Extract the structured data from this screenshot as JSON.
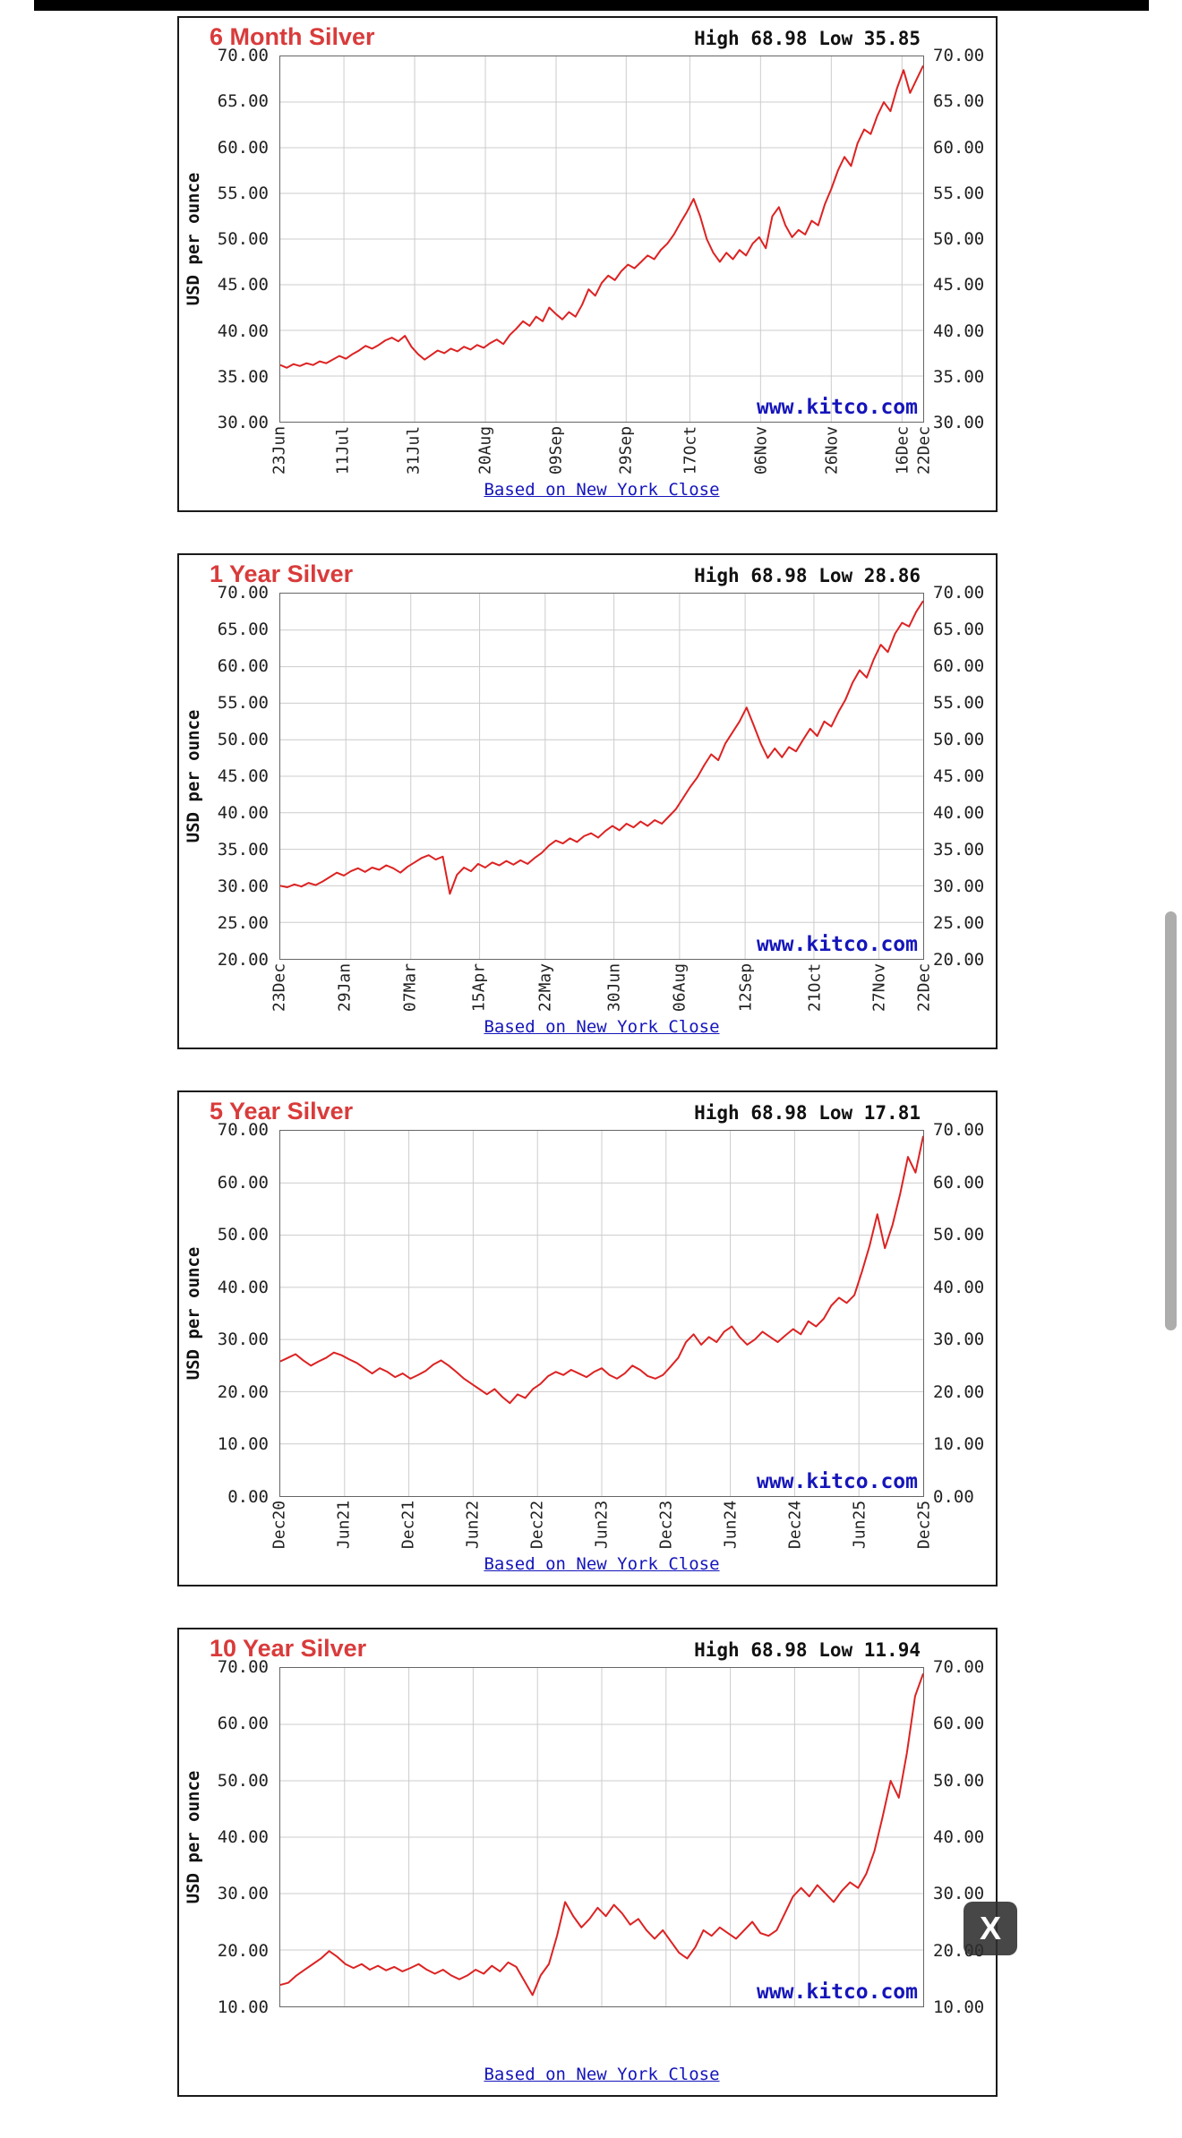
{
  "page": {
    "watermark": "www.kitco.com",
    "footer_link": "Based on New York Close",
    "close_button": "X"
  },
  "colors": {
    "title_red": "#d93b3b",
    "line_red": "#dd2222",
    "link_blue": "#1515bb",
    "grid_gray": "#cccccc"
  },
  "chart_data": [
    {
      "type": "line",
      "title": "6 Month Silver",
      "high_low": "High 68.98 Low 35.85",
      "high": 68.98,
      "low": 35.85,
      "ylabel": "USD per ounce",
      "ylim": [
        30,
        70
      ],
      "ystep": 5,
      "grid": true,
      "y_ticks": [
        "70.00",
        "65.00",
        "60.00",
        "55.00",
        "50.00",
        "45.00",
        "40.00",
        "35.00",
        "30.00"
      ],
      "x_ticks": [
        {
          "label": "23Jun",
          "pos": 0.0
        },
        {
          "label": "11Jul",
          "pos": 0.099
        },
        {
          "label": "31Jul",
          "pos": 0.209
        },
        {
          "label": "20Aug",
          "pos": 0.319
        },
        {
          "label": "09Sep",
          "pos": 0.429
        },
        {
          "label": "29Sep",
          "pos": 0.538
        },
        {
          "label": "17Oct",
          "pos": 0.637
        },
        {
          "label": "06Nov",
          "pos": 0.747
        },
        {
          "label": "26Nov",
          "pos": 0.857
        },
        {
          "label": "16Dec",
          "pos": 0.967
        },
        {
          "label": "22Dec",
          "pos": 1.0
        }
      ],
      "values": [
        36.2,
        35.9,
        36.3,
        36.1,
        36.4,
        36.2,
        36.6,
        36.4,
        36.8,
        37.2,
        36.9,
        37.4,
        37.8,
        38.3,
        38.0,
        38.4,
        38.9,
        39.2,
        38.8,
        39.4,
        38.2,
        37.4,
        36.8,
        37.3,
        37.8,
        37.5,
        38.0,
        37.7,
        38.2,
        37.9,
        38.4,
        38.1,
        38.6,
        39.0,
        38.5,
        39.5,
        40.2,
        41.0,
        40.5,
        41.5,
        41.0,
        42.5,
        41.8,
        41.2,
        42.0,
        41.5,
        42.8,
        44.5,
        43.8,
        45.2,
        46.0,
        45.5,
        46.5,
        47.2,
        46.8,
        47.5,
        48.2,
        47.8,
        48.8,
        49.5,
        50.5,
        51.8,
        53.0,
        54.4,
        52.5,
        50.0,
        48.5,
        47.5,
        48.5,
        47.8,
        48.8,
        48.2,
        49.5,
        50.2,
        49.0,
        52.5,
        53.5,
        51.5,
        50.2,
        51.0,
        50.5,
        52.0,
        51.5,
        53.8,
        55.5,
        57.5,
        59.0,
        58.0,
        60.5,
        62.0,
        61.5,
        63.5,
        65.0,
        64.0,
        66.5,
        68.5,
        66.0,
        67.5,
        69.0
      ]
    },
    {
      "type": "line",
      "title": "1 Year Silver",
      "high_low": "High 68.98 Low 28.86",
      "high": 68.98,
      "low": 28.86,
      "ylabel": "USD per ounce",
      "ylim": [
        20,
        70
      ],
      "ystep": 5,
      "grid": true,
      "y_ticks": [
        "70.00",
        "65.00",
        "60.00",
        "55.00",
        "50.00",
        "45.00",
        "40.00",
        "35.00",
        "30.00",
        "25.00",
        "20.00"
      ],
      "x_ticks": [
        {
          "label": "23Dec",
          "pos": 0.0
        },
        {
          "label": "29Jan",
          "pos": 0.102
        },
        {
          "label": "07Mar",
          "pos": 0.203
        },
        {
          "label": "15Apr",
          "pos": 0.31
        },
        {
          "label": "22May",
          "pos": 0.412
        },
        {
          "label": "30Jun",
          "pos": 0.519
        },
        {
          "label": "06Aug",
          "pos": 0.621
        },
        {
          "label": "12Sep",
          "pos": 0.723
        },
        {
          "label": "21Oct",
          "pos": 0.83
        },
        {
          "label": "27Nov",
          "pos": 0.931
        },
        {
          "label": "22Dec",
          "pos": 1.0
        }
      ],
      "values": [
        30.0,
        29.8,
        30.2,
        29.9,
        30.4,
        30.1,
        30.6,
        31.2,
        31.8,
        31.4,
        32.0,
        32.4,
        31.9,
        32.5,
        32.2,
        32.8,
        32.4,
        31.8,
        32.6,
        33.2,
        33.8,
        34.2,
        33.6,
        34.0,
        28.9,
        31.5,
        32.5,
        32.0,
        33.0,
        32.5,
        33.2,
        32.8,
        33.4,
        32.9,
        33.5,
        33.0,
        33.8,
        34.5,
        35.5,
        36.2,
        35.8,
        36.5,
        36.0,
        36.8,
        37.2,
        36.6,
        37.5,
        38.2,
        37.6,
        38.5,
        38.0,
        38.8,
        38.2,
        39.0,
        38.5,
        39.5,
        40.5,
        42.0,
        43.5,
        44.8,
        46.5,
        48.0,
        47.2,
        49.5,
        51.0,
        52.5,
        54.4,
        52.0,
        49.5,
        47.5,
        48.8,
        47.6,
        49.0,
        48.4,
        50.0,
        51.5,
        50.5,
        52.5,
        51.8,
        53.8,
        55.5,
        57.8,
        59.5,
        58.5,
        61.0,
        63.0,
        62.0,
        64.5,
        66.0,
        65.5,
        67.5,
        69.0
      ]
    },
    {
      "type": "line",
      "title": "5 Year Silver",
      "high_low": "High 68.98 Low 17.81",
      "high": 68.98,
      "low": 17.81,
      "ylabel": "USD per ounce",
      "ylim": [
        0,
        70
      ],
      "ystep": 10,
      "grid": true,
      "y_ticks": [
        "70.00",
        "60.00",
        "50.00",
        "40.00",
        "30.00",
        "20.00",
        "10.00",
        "0.00"
      ],
      "x_ticks": [
        {
          "label": "Dec20",
          "pos": 0.0
        },
        {
          "label": "Jun21",
          "pos": 0.1
        },
        {
          "label": "Dec21",
          "pos": 0.2
        },
        {
          "label": "Jun22",
          "pos": 0.3
        },
        {
          "label": "Dec22",
          "pos": 0.4
        },
        {
          "label": "Jun23",
          "pos": 0.5
        },
        {
          "label": "Dec23",
          "pos": 0.6
        },
        {
          "label": "Jun24",
          "pos": 0.7
        },
        {
          "label": "Dec24",
          "pos": 0.8
        },
        {
          "label": "Jun25",
          "pos": 0.9
        },
        {
          "label": "Dec25",
          "pos": 1.0
        }
      ],
      "values": [
        25.8,
        26.5,
        27.2,
        26.0,
        25.0,
        25.8,
        26.5,
        27.5,
        27.0,
        26.2,
        25.5,
        24.5,
        23.5,
        24.5,
        23.8,
        22.8,
        23.5,
        22.5,
        23.2,
        24.0,
        25.2,
        26.0,
        25.0,
        23.8,
        22.5,
        21.5,
        20.5,
        19.5,
        20.5,
        19.0,
        17.8,
        19.5,
        18.8,
        20.5,
        21.5,
        23.0,
        23.8,
        23.2,
        24.2,
        23.5,
        22.8,
        23.8,
        24.5,
        23.2,
        22.5,
        23.5,
        25.0,
        24.2,
        23.0,
        22.5,
        23.2,
        24.8,
        26.5,
        29.5,
        31.0,
        29.0,
        30.5,
        29.5,
        31.5,
        32.5,
        30.5,
        29.0,
        30.0,
        31.5,
        30.5,
        29.5,
        30.8,
        32.0,
        31.0,
        33.5,
        32.5,
        34.0,
        36.5,
        38.0,
        37.0,
        38.5,
        43.0,
        48.0,
        54.0,
        47.5,
        52.0,
        58.0,
        65.0,
        62.0,
        69.0
      ]
    },
    {
      "type": "line",
      "title": "10 Year Silver",
      "high_low": "High 68.98 Low 11.94",
      "high": 68.98,
      "low": 11.94,
      "ylabel": "USD per ounce",
      "ylim": [
        10,
        70
      ],
      "ystep": 10,
      "grid": true,
      "y_ticks": [
        "70.00",
        "60.00",
        "50.00",
        "40.00",
        "30.00",
        "20.00",
        "10.00"
      ],
      "x_ticks": [
        {
          "label": "",
          "pos": 0.1
        },
        {
          "label": "",
          "pos": 0.2
        },
        {
          "label": "",
          "pos": 0.3
        },
        {
          "label": "",
          "pos": 0.4
        },
        {
          "label": "",
          "pos": 0.5
        },
        {
          "label": "",
          "pos": 0.6
        },
        {
          "label": "",
          "pos": 0.7
        },
        {
          "label": "",
          "pos": 0.8
        },
        {
          "label": "",
          "pos": 0.9
        }
      ],
      "values": [
        13.8,
        14.2,
        15.5,
        16.5,
        17.5,
        18.5,
        19.8,
        18.8,
        17.5,
        16.8,
        17.5,
        16.5,
        17.2,
        16.4,
        17.0,
        16.2,
        16.8,
        17.5,
        16.5,
        15.8,
        16.5,
        15.5,
        14.8,
        15.5,
        16.5,
        15.8,
        17.2,
        16.2,
        17.8,
        17.0,
        14.5,
        12.0,
        15.5,
        17.5,
        22.5,
        28.5,
        26.0,
        24.0,
        25.5,
        27.5,
        26.0,
        28.0,
        26.5,
        24.5,
        25.5,
        23.5,
        22.0,
        23.5,
        21.5,
        19.5,
        18.5,
        20.5,
        23.5,
        22.5,
        24.0,
        23.0,
        22.0,
        23.5,
        25.0,
        23.0,
        22.5,
        23.5,
        26.5,
        29.5,
        31.0,
        29.5,
        31.5,
        30.0,
        28.5,
        30.5,
        32.0,
        31.0,
        33.5,
        37.5,
        43.5,
        50.0,
        47.0,
        55.0,
        65.0,
        69.0
      ]
    }
  ]
}
